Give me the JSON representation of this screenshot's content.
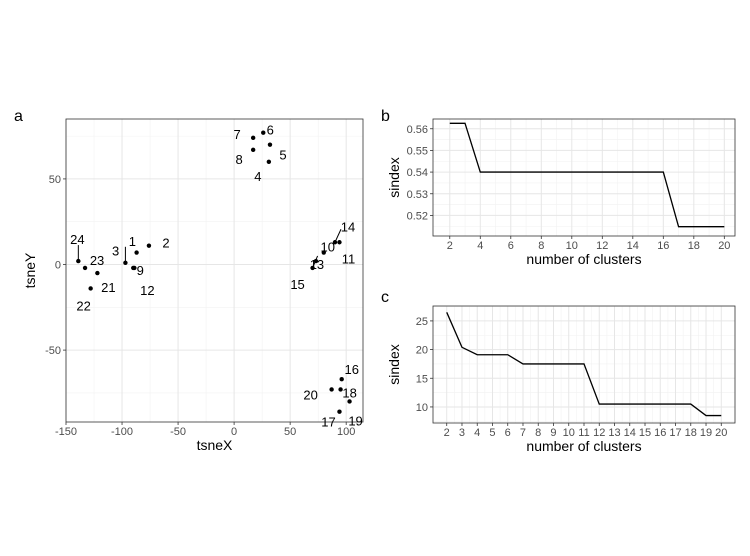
{
  "chart_data": [
    {
      "panel_label": "a",
      "type": "scatter",
      "xlabel": "tsneX",
      "ylabel": "tsneY",
      "xlim": [
        -150,
        115
      ],
      "ylim": [
        -92,
        85
      ],
      "xticks": [
        -150,
        -100,
        -50,
        0,
        50,
        100
      ],
      "yticks": [
        -50,
        0,
        50
      ],
      "grid": true,
      "points": [
        {
          "label": "1",
          "x": -97,
          "y": 1
        },
        {
          "label": "2",
          "x": -76,
          "y": 11
        },
        {
          "label": "3",
          "x": -87,
          "y": 7
        },
        {
          "label": "4",
          "x": 31,
          "y": 60
        },
        {
          "label": "5",
          "x": 32,
          "y": 70
        },
        {
          "label": "6",
          "x": 26,
          "y": 77
        },
        {
          "label": "7",
          "x": 17,
          "y": 74
        },
        {
          "label": "8",
          "x": 17,
          "y": 67
        },
        {
          "label": "9",
          "x": -90,
          "y": -2
        },
        {
          "label": "10",
          "x": 80,
          "y": 7
        },
        {
          "label": "11",
          "x": 94,
          "y": 13
        },
        {
          "label": "12",
          "x": -89,
          "y": -2
        },
        {
          "label": "13",
          "x": 73,
          "y": 2
        },
        {
          "label": "14",
          "x": 90,
          "y": 13
        },
        {
          "label": "15",
          "x": 70,
          "y": -2
        },
        {
          "label": "16",
          "x": 96,
          "y": -67
        },
        {
          "label": "17",
          "x": 94,
          "y": -86
        },
        {
          "label": "18",
          "x": 95,
          "y": -73
        },
        {
          "label": "19",
          "x": 103,
          "y": -80
        },
        {
          "label": "20",
          "x": 87,
          "y": -73
        },
        {
          "label": "21",
          "x": -122,
          "y": -5
        },
        {
          "label": "22",
          "x": -128,
          "y": -14
        },
        {
          "label": "23",
          "x": -133,
          "y": -2
        },
        {
          "label": "24",
          "x": -139,
          "y": 2
        }
      ]
    },
    {
      "panel_label": "b",
      "type": "line",
      "xlabel": "number of clusters",
      "ylabel": "sindex",
      "xlim": [
        0.9,
        20.7
      ],
      "ylim": [
        0.5105,
        0.5645
      ],
      "xticks": [
        2,
        4,
        6,
        8,
        10,
        12,
        14,
        16,
        18,
        20
      ],
      "yticks": [
        0.52,
        0.53,
        0.54,
        0.55,
        0.56
      ],
      "ytick_labels": [
        "0.52",
        "0.53",
        "0.54",
        "0.55",
        "0.56"
      ],
      "grid": true,
      "series": [
        {
          "x": [
            2,
            3,
            4,
            5,
            6,
            7,
            8,
            9,
            10,
            11,
            12,
            13,
            14,
            15,
            16,
            17,
            18,
            19,
            20
          ],
          "values": [
            0.5625,
            0.5625,
            0.54,
            0.54,
            0.54,
            0.54,
            0.54,
            0.54,
            0.54,
            0.54,
            0.54,
            0.54,
            0.54,
            0.54,
            0.54,
            0.5148,
            0.5148,
            0.5148,
            0.5148
          ]
        }
      ]
    },
    {
      "panel_label": "c",
      "type": "line",
      "xlabel": "number of clusters",
      "ylabel": "sindex",
      "xlim": [
        1.1,
        20.9
      ],
      "ylim": [
        7.2,
        27.6
      ],
      "xticks": [
        2,
        3,
        4,
        5,
        6,
        7,
        8,
        9,
        10,
        11,
        12,
        13,
        14,
        15,
        16,
        17,
        18,
        19,
        20
      ],
      "yticks": [
        10,
        15,
        20,
        25
      ],
      "ytick_labels": [
        "10",
        "15",
        "20",
        "25"
      ],
      "grid": true,
      "series": [
        {
          "x": [
            2,
            3,
            4,
            5,
            6,
            7,
            8,
            9,
            10,
            11,
            12,
            13,
            14,
            15,
            16,
            17,
            18,
            19,
            20
          ],
          "values": [
            26.5,
            20.4,
            19.1,
            19.1,
            19.1,
            17.5,
            17.5,
            17.5,
            17.5,
            17.5,
            10.5,
            10.5,
            10.5,
            10.5,
            10.5,
            10.5,
            10.5,
            8.5,
            8.5
          ]
        }
      ]
    }
  ]
}
